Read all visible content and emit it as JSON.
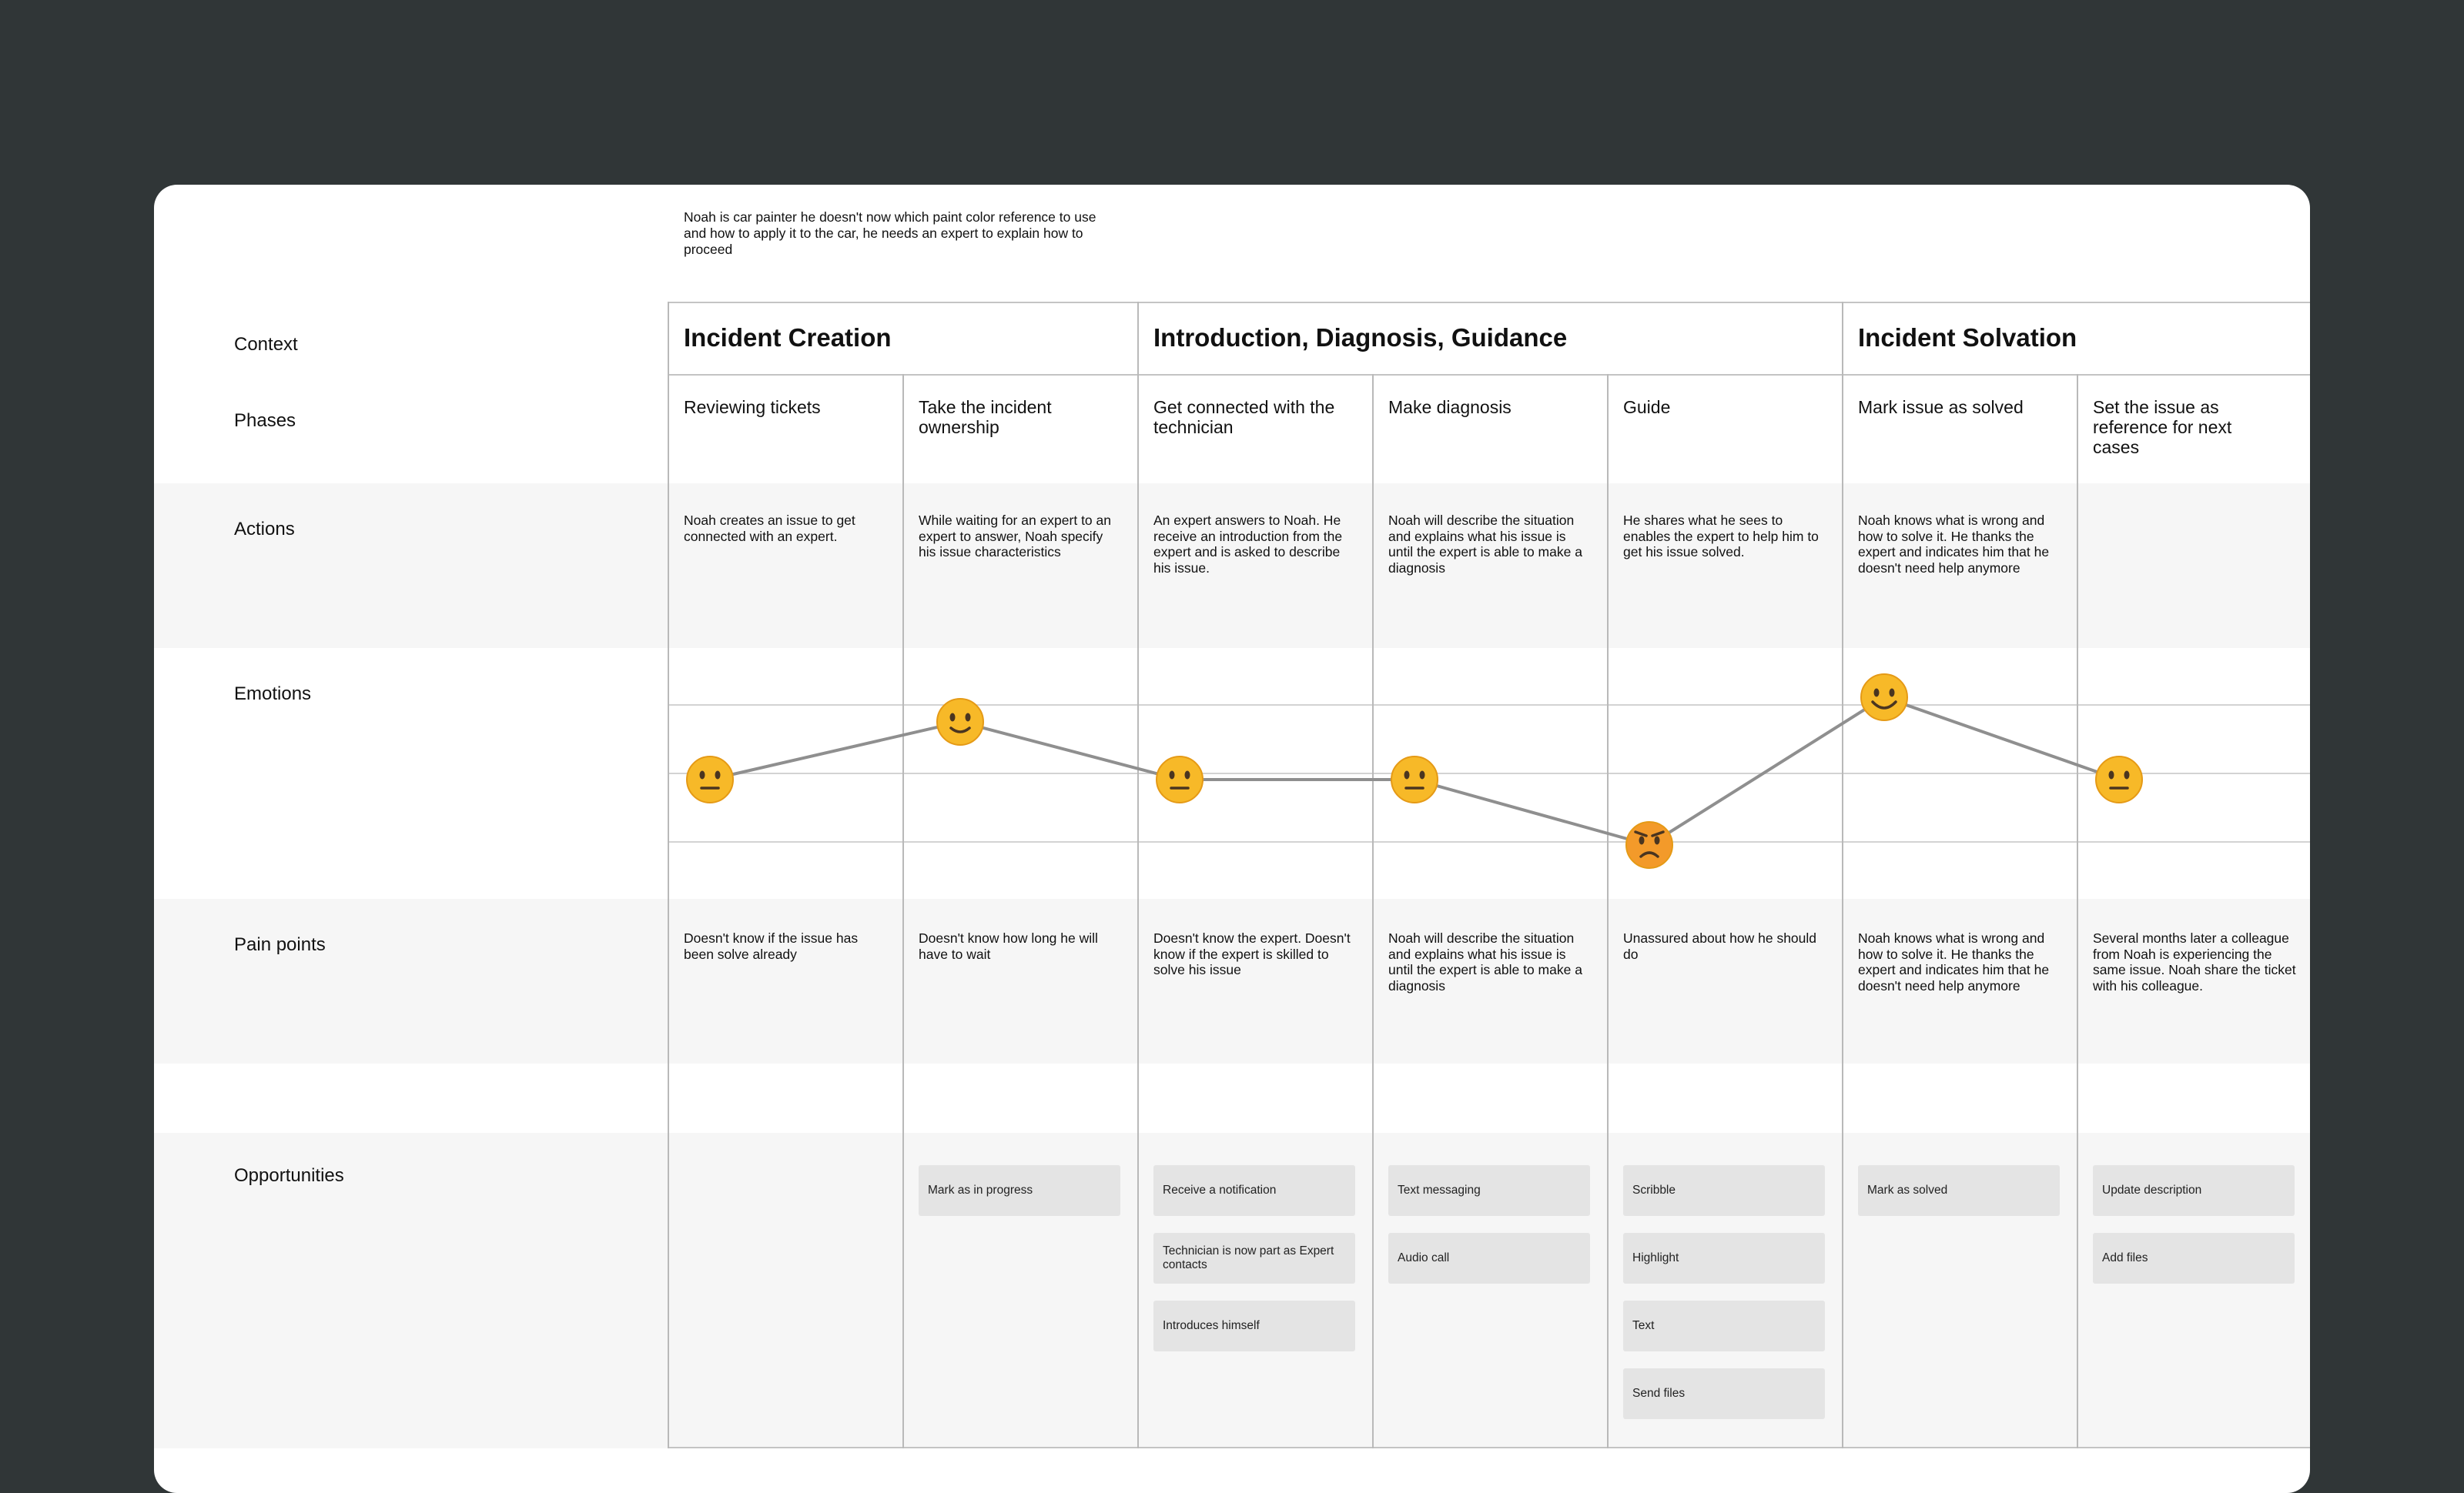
{
  "context_text": "Noah is car painter he doesn't now which paint color reference to use and how to apply it to the car, he needs an expert to explain how to proceed",
  "row_labels": {
    "context": "Context",
    "phases": "Phases",
    "actions": "Actions",
    "emotions": "Emotions",
    "pain_points": "Pain points",
    "opportunities": "Opportunities"
  },
  "groups": [
    {
      "title": "Incident Creation"
    },
    {
      "title": "Introduction, Diagnosis, Guidance"
    },
    {
      "title": "Incident Solvation"
    }
  ],
  "columns": [
    {
      "phase": "Reviewing tickets",
      "action": "Noah creates an issue to get connected with an expert.",
      "emotion": "neutral",
      "pain_point": "Doesn't know if the issue has been solve already",
      "opportunities": []
    },
    {
      "phase": "Take the incident ownership",
      "action": "While waiting for an expert to an expert to answer, Noah specify his issue characteristics",
      "emotion": "slightly-smiling",
      "pain_point": "Doesn't know how long he will have to wait",
      "opportunities": [
        "Mark as in progress"
      ]
    },
    {
      "phase": "Get connected with the technician",
      "action": "An expert answers to Noah. He receive an introduction from the expert and is asked to describe his issue.",
      "emotion": "neutral",
      "pain_point": "Doesn't know the expert. Doesn't know if the expert is skilled to solve his issue",
      "opportunities": [
        "Receive a notification",
        "Technician is now part as Expert contacts",
        "Introduces himself"
      ]
    },
    {
      "phase": "Make diagnosis",
      "action": "Noah will describe the situation and explains what his issue is until the expert is able to make a diagnosis",
      "emotion": "neutral",
      "pain_point": "Noah will describe the situation and explains what his issue is until the expert is able to make a diagnosis",
      "opportunities": [
        "Text messaging",
        "Audio call"
      ]
    },
    {
      "phase": "Guide",
      "action": "He shares what he sees to enables the expert to help him to get his issue solved.",
      "emotion": "angry",
      "pain_point": "Unassured about how he should do",
      "opportunities": [
        "Scribble",
        "Highlight",
        "Text",
        "Send files"
      ]
    },
    {
      "phase": "Mark issue as solved",
      "action": "Noah knows what is wrong and how to solve it. He thanks the expert and indicates him that he doesn't need help anymore",
      "emotion": "smiling",
      "pain_point": "Noah knows what is wrong and how to solve it. He thanks the expert and indicates him that he doesn't need help anymore",
      "opportunities": [
        "Mark as solved"
      ]
    },
    {
      "phase": "Set the issue as reference for next cases",
      "action": "",
      "emotion": "neutral",
      "pain_point": "Several months later a colleague from Noah is experiencing the same issue. Noah share the ticket with his colleague.",
      "opportunities": [
        "Update description",
        "Add files"
      ]
    }
  ],
  "emotion_levels": [
    0,
    1,
    0,
    0,
    -1,
    2,
    0
  ],
  "emoji_glyphs": {
    "neutral": "😐",
    "slightly-smiling": "🙂",
    "smiling": "😊",
    "angry": "😠"
  },
  "colors": {
    "background": "#303637",
    "card": "#ffffff",
    "band": "#f6f6f6",
    "opportunity_card": "#e4e4e4",
    "emotion_line": "#8f8f8f",
    "emoji_face": "#f7b928"
  }
}
